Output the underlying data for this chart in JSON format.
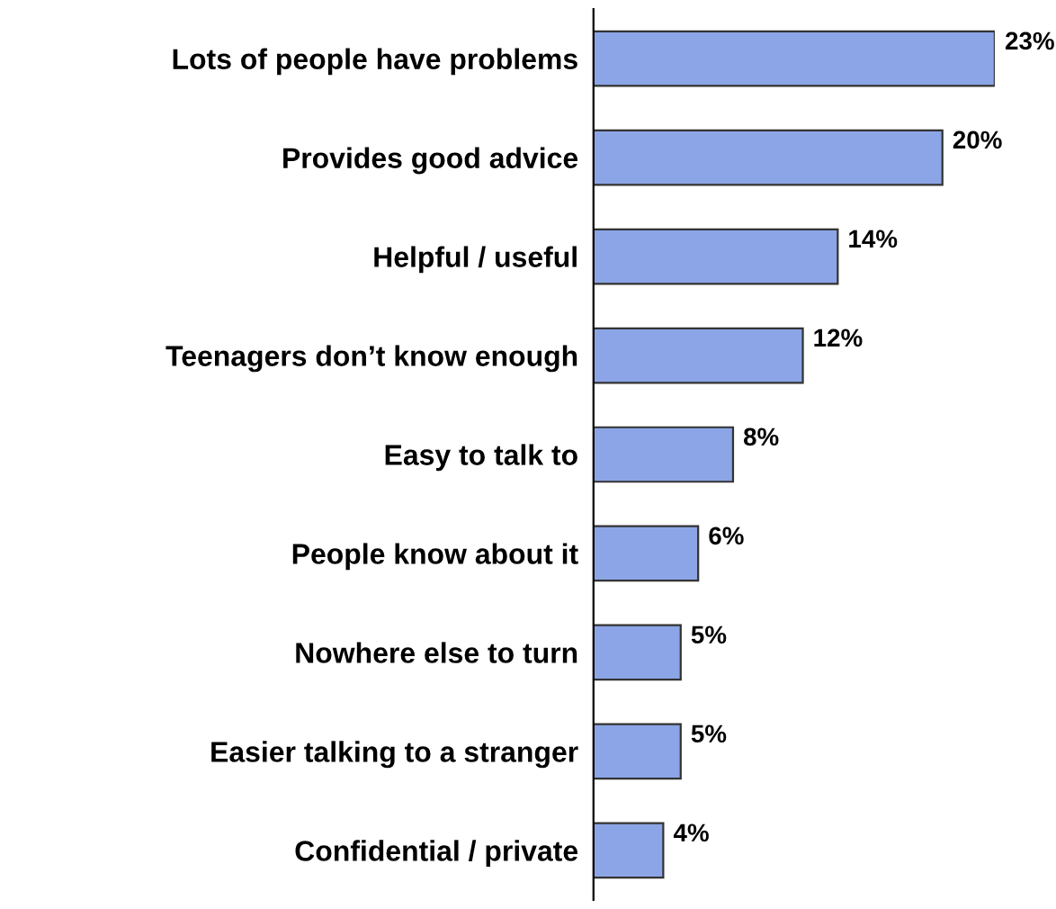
{
  "chart_data": {
    "type": "bar",
    "orientation": "horizontal",
    "categories": [
      "Lots of people have problems",
      "Provides good advice",
      "Helpful / useful",
      "Teenagers don’t know enough",
      "Easy to talk to",
      "People know about it",
      "Nowhere else to turn",
      "Easier talking to a stranger",
      "Confidential / private"
    ],
    "values": [
      23,
      20,
      14,
      12,
      8,
      6,
      5,
      5,
      4
    ],
    "value_labels": [
      "23%",
      "20%",
      "14%",
      "12%",
      "8%",
      "6%",
      "5%",
      "5%",
      "4%"
    ],
    "color": "#8ca5e6",
    "grid": false,
    "legend": false
  }
}
